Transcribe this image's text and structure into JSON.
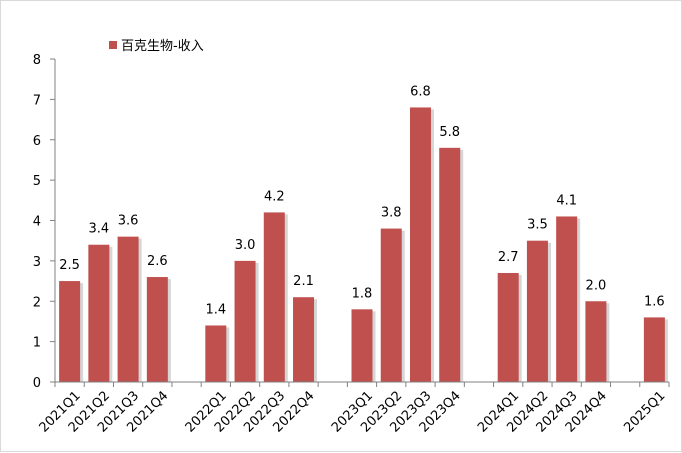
{
  "chart_data": {
    "type": "bar",
    "categories": [
      "2021Q1",
      "2021Q2",
      "2021Q3",
      "2021Q4",
      "",
      "2022Q1",
      "2022Q2",
      "2022Q3",
      "2022Q4",
      "",
      "2023Q1",
      "2023Q2",
      "2023Q3",
      "2023Q4",
      "",
      "2024Q1",
      "2024Q2",
      "2024Q3",
      "2024Q4",
      "",
      "2025Q1"
    ],
    "series": [
      {
        "name": "百克生物-收入",
        "values": [
          2.5,
          3.4,
          3.6,
          2.6,
          null,
          1.4,
          3.0,
          4.2,
          2.1,
          null,
          1.8,
          3.8,
          6.8,
          5.8,
          null,
          2.7,
          3.5,
          4.1,
          2.0,
          null,
          1.6
        ],
        "labels": [
          "2.5",
          "3.4",
          "3.6",
          "2.6",
          "",
          "1.4",
          "3.0",
          "4.2",
          "2.1",
          "",
          "1.8",
          "3.8",
          "6.8",
          "5.8",
          "",
          "2.7",
          "3.5",
          "4.1",
          "2.0",
          "",
          "1.6"
        ]
      }
    ],
    "y_ticks": [
      "0",
      "1",
      "2",
      "3",
      "4",
      "5",
      "6",
      "7",
      "8"
    ],
    "ylim": [
      0,
      8
    ],
    "grid": false,
    "legend_position": "top-left",
    "bar_color": "#C0504D",
    "shadow_color": "#d6d6d6",
    "axis_color": "#808080"
  }
}
